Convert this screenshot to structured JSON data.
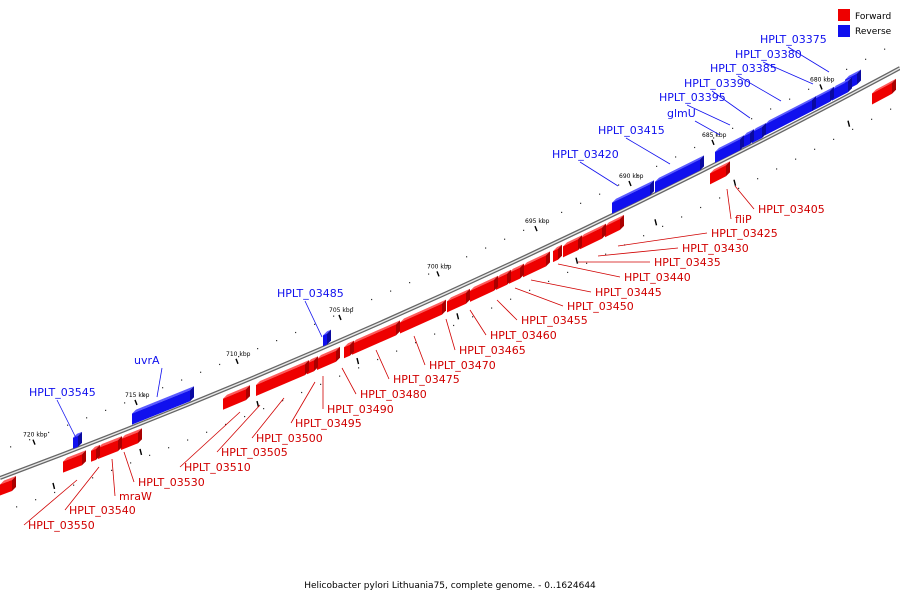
{
  "caption": "Helicobacter pylori Lithuania75, complete genome. - 0..1624644",
  "legend": [
    {
      "label": "Forward",
      "color": "#ee0000"
    },
    {
      "label": "Reverse",
      "color": "#1010ee"
    }
  ],
  "ticks": [
    "680 kbp",
    "685 kbp",
    "690 kbp",
    "695 kbp",
    "700 kbp",
    "705 kbp",
    "710 kbp",
    "715 kbp",
    "720 kbp"
  ],
  "labels_reverse": [
    "HPLT_03375",
    "HPLT_03380",
    "HPLT_03385",
    "HPLT_03390",
    "HPLT_03395",
    "glmU",
    "HPLT_03415",
    "HPLT_03420",
    "HPLT_03485",
    "uvrA",
    "HPLT_03545"
  ],
  "labels_forward": [
    "HPLT_03405",
    "fliP",
    "HPLT_03425",
    "HPLT_03430",
    "HPLT_03435",
    "HPLT_03440",
    "HPLT_03445",
    "HPLT_03450",
    "HPLT_03455",
    "HPLT_03460",
    "HPLT_03465",
    "HPLT_03470",
    "HPLT_03475",
    "HPLT_03480",
    "HPLT_03490",
    "HPLT_03495",
    "HPLT_03500",
    "HPLT_03505",
    "HPLT_03510",
    "HPLT_03530",
    "mraW",
    "HPLT_03540",
    "HPLT_03550"
  ]
}
